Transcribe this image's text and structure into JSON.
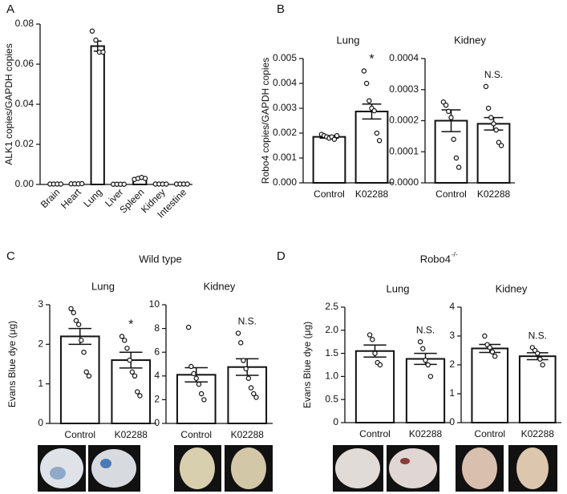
{
  "figure": {
    "panels": [
      "A",
      "B",
      "C",
      "D"
    ],
    "groups": [
      {
        "title": "Wild type"
      },
      {
        "title": "Robo4",
        "superscript": "-/-"
      }
    ]
  },
  "chart_data": [
    {
      "type": "bar",
      "ylabel": "ALK1 copies/GAPDH copies",
      "categories": [
        "Brain",
        "Heart",
        "Lung",
        "Liver",
        "Spleen",
        "Kidney",
        "Intestine"
      ],
      "values": [
        0.0002,
        0.0003,
        0.069,
        0.0001,
        0.003,
        0.0002,
        0.0002
      ],
      "errors": [
        0.0001,
        0.0001,
        0.0025,
        0.0001,
        0.0003,
        0.0001,
        0.0001
      ],
      "points": [
        [
          0.0002,
          0.0002,
          0.0002,
          0.0002
        ],
        [
          0.0003,
          0.0003,
          0.0003,
          0.0004
        ],
        [
          0.0765,
          0.072,
          0.066,
          0.066
        ],
        [
          0.0001,
          0.0001,
          0.0001,
          0.0001
        ],
        [
          0.0025,
          0.003,
          0.0035,
          0.003
        ],
        [
          0.0002,
          0.0002,
          0.0002,
          0.0002
        ],
        [
          0.0002,
          0.0002,
          0.0002,
          0.0002
        ]
      ],
      "ylim": [
        0,
        0.08
      ],
      "yticks": [
        {
          "value": 0,
          "label": "0.00"
        },
        {
          "value": 0.02,
          "label": "0.02"
        },
        {
          "value": 0.04,
          "label": "0.04"
        },
        {
          "value": 0.06,
          "label": "0.06"
        },
        {
          "value": 0.08,
          "label": "0.08"
        }
      ]
    },
    {
      "type": "bar",
      "title": "Lung",
      "ylabel": "Robo4 copies/GAPDH copies",
      "categories": [
        "Control",
        "K02288"
      ],
      "annotations": [
        null,
        "*"
      ],
      "values": [
        0.00185,
        0.00287
      ],
      "errors": [
        5e-05,
        0.0003
      ],
      "points": [
        [
          0.00195,
          0.0019,
          0.00185,
          0.0018,
          0.00185,
          0.00175,
          0.0019
        ],
        [
          0.0045,
          0.004,
          0.0033,
          0.003,
          0.0029,
          0.002,
          0.0017
        ]
      ],
      "ylim": [
        0,
        0.005
      ],
      "yticks": [
        {
          "value": 0,
          "label": "0.000"
        },
        {
          "value": 0.001,
          "label": "0.001"
        },
        {
          "value": 0.002,
          "label": "0.002"
        },
        {
          "value": 0.003,
          "label": "0.003"
        },
        {
          "value": 0.004,
          "label": "0.004"
        },
        {
          "value": 0.005,
          "label": "0.005"
        }
      ]
    },
    {
      "type": "bar",
      "title": "Kidney",
      "categories": [
        "Control",
        "K02288"
      ],
      "annotations": [
        null,
        "N.S."
      ],
      "values": [
        0.0002,
        0.00019
      ],
      "errors": [
        3.5e-05,
        2e-05
      ],
      "points": [
        [
          0.00026,
          0.00025,
          0.00023,
          0.00021,
          0.00014,
          8e-05,
          5e-05
        ],
        [
          0.00031,
          0.00024,
          0.00021,
          0.00019,
          0.00017,
          0.00013,
          0.00012
        ]
      ],
      "ylim": [
        0,
        0.0004
      ],
      "yticks": [
        {
          "value": 0,
          "label": "0.0000"
        },
        {
          "value": 0.0001,
          "label": "0.0001"
        },
        {
          "value": 0.0002,
          "label": "0.0002"
        },
        {
          "value": 0.0003,
          "label": "0.0003"
        },
        {
          "value": 0.0004,
          "label": "0.0004"
        }
      ]
    },
    {
      "type": "bar",
      "title": "Lung",
      "ylabel": "Evans Blue dye (μg)",
      "categories": [
        "Control",
        "K02288"
      ],
      "annotations": [
        null,
        "*"
      ],
      "values": [
        2.2,
        1.6
      ],
      "errors": [
        0.2,
        0.2
      ],
      "points": [
        [
          2.9,
          2.8,
          2.6,
          2.5,
          2.1,
          1.8,
          1.3,
          1.2
        ],
        [
          2.2,
          2.1,
          1.9,
          1.6,
          1.3,
          1.2,
          0.8,
          0.7
        ]
      ],
      "ylim": [
        0,
        3
      ],
      "yticks": [
        0,
        1,
        2,
        3
      ]
    },
    {
      "type": "bar",
      "title": "Kidney",
      "categories": [
        "Control",
        "K02288"
      ],
      "annotations": [
        null,
        "N.S."
      ],
      "values": [
        4.1,
        4.75
      ],
      "errors": [
        0.6,
        0.7
      ],
      "points": [
        [
          8.1,
          4.8,
          4.2,
          3.8,
          3.3,
          2.5,
          2.0
        ],
        [
          7.6,
          6.8,
          5.3,
          4.6,
          3.8,
          3.0,
          2.5,
          2.2
        ]
      ],
      "ylim": [
        0,
        10
      ],
      "yticks": [
        0,
        2,
        4,
        6,
        8,
        10
      ]
    },
    {
      "type": "bar",
      "title": "Lung",
      "ylabel": "Evans Blue dye (μg)",
      "categories": [
        "Control",
        "K02288"
      ],
      "annotations": [
        null,
        "N.S."
      ],
      "values": [
        1.55,
        1.38
      ],
      "errors": [
        0.13,
        0.12
      ],
      "points": [
        [
          1.9,
          1.8,
          1.5,
          1.3,
          1.25
        ],
        [
          1.75,
          1.6,
          1.35,
          1.25,
          1.0
        ]
      ],
      "ylim": [
        0,
        2.5
      ],
      "yticks": [
        0,
        0.5,
        {
          "value": 1,
          "label": "1.0"
        },
        1.5,
        {
          "value": 2,
          "label": "2.0"
        },
        2.5
      ]
    },
    {
      "type": "bar",
      "title": "Kidney",
      "categories": [
        "Control",
        "K02288"
      ],
      "annotations": [
        null,
        "N.S."
      ],
      "values": [
        2.57,
        2.3
      ],
      "errors": [
        0.14,
        0.12
      ],
      "points": [
        [
          3.0,
          2.7,
          2.6,
          2.45,
          2.3
        ],
        [
          2.6,
          2.5,
          2.4,
          2.2,
          2.0
        ]
      ],
      "ylim": [
        0,
        4
      ],
      "yticks": [
        0,
        1,
        2,
        3,
        4
      ]
    }
  ]
}
